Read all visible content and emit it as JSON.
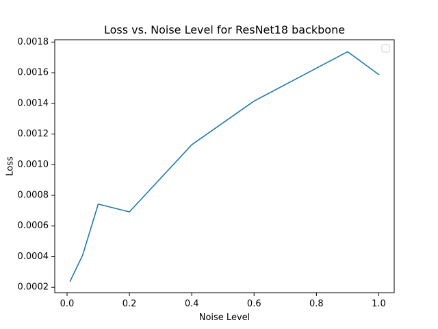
{
  "chart_data": {
    "type": "line",
    "title": "Loss vs. Noise Level for ResNet18 backbone",
    "xlabel": "Noise Level",
    "ylabel": "Loss",
    "xlim": [
      -0.0395,
      1.0495
    ],
    "ylim": [
      0.000165,
      0.001815
    ],
    "xticks": [
      0.0,
      0.2,
      0.4,
      0.6,
      0.8,
      1.0
    ],
    "xtick_labels": [
      "0.0",
      "0.2",
      "0.4",
      "0.6",
      "0.8",
      "1.0"
    ],
    "yticks": [
      0.0002,
      0.0004,
      0.0006,
      0.0008,
      0.001,
      0.0012,
      0.0014,
      0.0016,
      0.0018
    ],
    "ytick_labels": [
      "0.0002",
      "0.0004",
      "0.0006",
      "0.0008",
      "0.0010",
      "0.0012",
      "0.0014",
      "0.0016",
      "0.0018"
    ],
    "grid": false,
    "legend": "top-right",
    "series": [
      {
        "color": "#1f77b4",
        "x": [
          0.01,
          0.05,
          0.1,
          0.2,
          0.4,
          0.6,
          0.9,
          1.0
        ],
        "y": [
          0.00024,
          0.00041,
          0.000743,
          0.000692,
          0.00113,
          0.001415,
          0.001737,
          0.001588
        ]
      }
    ]
  }
}
